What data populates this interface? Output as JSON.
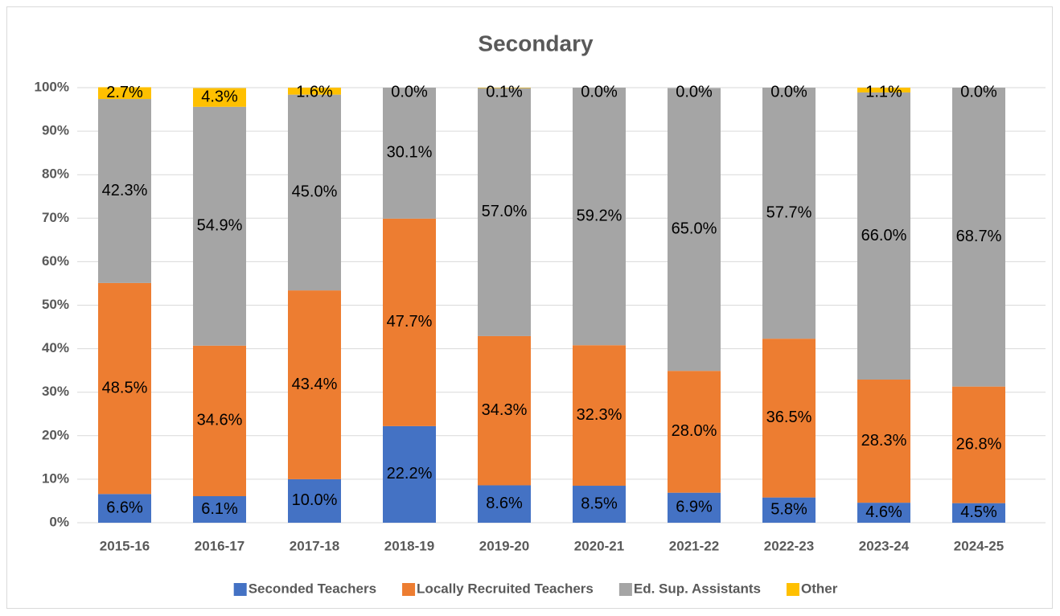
{
  "chart_data": {
    "type": "stacked_bar",
    "title": "Secondary",
    "categories": [
      "2015-16",
      "2016-17",
      "2017-18",
      "2018-19",
      "2019-20",
      "2020-21",
      "2021-22",
      "2022-23",
      "2023-24",
      "2024-25"
    ],
    "series": [
      {
        "name": "Seconded Teachers",
        "color": "#4472c4",
        "values": [
          6.6,
          6.1,
          10.0,
          22.2,
          8.6,
          8.5,
          6.9,
          5.8,
          4.6,
          4.5
        ],
        "value_labels": [
          "6.6%",
          "6.1%",
          "10.0%",
          "22.2%",
          "8.6%",
          "8.5%",
          "6.9%",
          "5.8%",
          "4.6%",
          "4.5%"
        ]
      },
      {
        "name": "Locally Recruited Teachers",
        "color": "#ed7d31",
        "values": [
          48.5,
          34.6,
          43.4,
          47.7,
          34.3,
          32.3,
          28.0,
          36.5,
          28.3,
          26.8
        ],
        "value_labels": [
          "48.5%",
          "34.6%",
          "43.4%",
          "47.7%",
          "34.3%",
          "32.3%",
          "28.0%",
          "36.5%",
          "28.3%",
          "26.8%"
        ]
      },
      {
        "name": "Ed. Sup. Assistants",
        "color": "#a5a5a5",
        "values": [
          42.3,
          54.9,
          45.0,
          30.1,
          57.0,
          59.2,
          65.0,
          57.7,
          66.0,
          68.7
        ],
        "value_labels": [
          "42.3%",
          "54.9%",
          "45.0%",
          "30.1%",
          "57.0%",
          "59.2%",
          "65.0%",
          "57.7%",
          "66.0%",
          "68.7%"
        ]
      },
      {
        "name": "Other",
        "color": "#ffc000",
        "values": [
          2.7,
          4.3,
          1.6,
          0.0,
          0.1,
          0.0,
          0.0,
          0.0,
          1.1,
          0.0
        ],
        "value_labels": [
          "2.7%",
          "4.3%",
          "1.6%",
          "0.0%",
          "0.1%",
          "0.0%",
          "0.0%",
          "0.0%",
          "1.1%",
          "0.0%"
        ]
      }
    ],
    "ylim": [
      0,
      100
    ],
    "yticks": [
      {
        "value": 0,
        "label": "0%"
      },
      {
        "value": 10,
        "label": "10%"
      },
      {
        "value": 20,
        "label": "20%"
      },
      {
        "value": 30,
        "label": "30%"
      },
      {
        "value": 40,
        "label": "40%"
      },
      {
        "value": 50,
        "label": "50%"
      },
      {
        "value": 60,
        "label": "60%"
      },
      {
        "value": 70,
        "label": "70%"
      },
      {
        "value": 80,
        "label": "80%"
      },
      {
        "value": 90,
        "label": "90%"
      },
      {
        "value": 100,
        "label": "100%"
      }
    ],
    "grid": true,
    "legend": "bottom"
  }
}
